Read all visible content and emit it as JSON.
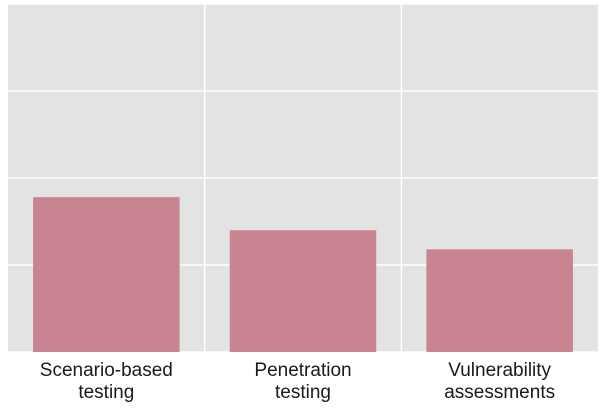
{
  "chart_data": {
    "type": "bar",
    "title": "",
    "xlabel": "",
    "ylabel": "",
    "categories": [
      [
        "Scenario-based",
        "testing"
      ],
      [
        "Penetration",
        "testing"
      ],
      [
        "Vulnerability",
        "assessments"
      ]
    ],
    "values": [
      1.78,
      1.4,
      1.18
    ],
    "ylim": [
      0,
      4
    ],
    "yticks": [
      0,
      1,
      2,
      3,
      4
    ],
    "grid": true,
    "show_y_tick_labels": false,
    "legend": "none",
    "colors": {
      "bar": "#c98491",
      "plot_background": "#e3e3e3",
      "gridline": "#ffffff"
    }
  }
}
